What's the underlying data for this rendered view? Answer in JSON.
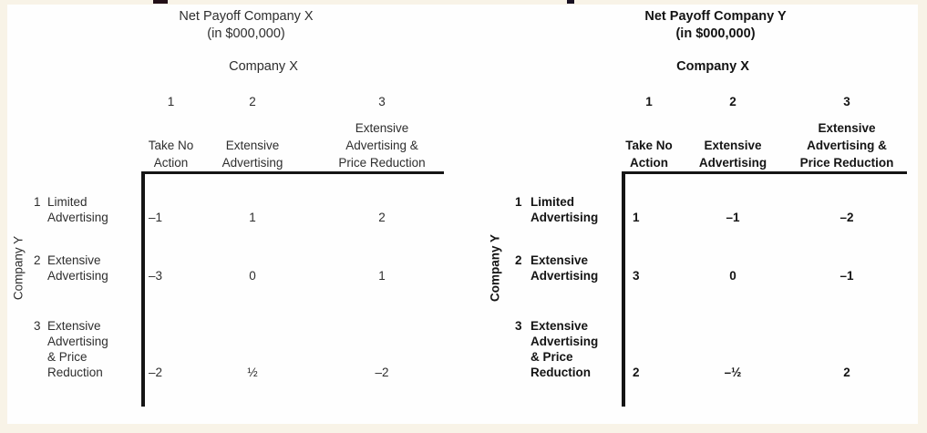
{
  "palette": {
    "page_border_background": "#f8f3e7",
    "content_background": "#fefefe",
    "left_table_text": "#2e2e2e",
    "right_table_text": "#141414",
    "table_rule": "#151515"
  },
  "chart_data": [
    {
      "type": "table",
      "title": "Net Payoff Company X",
      "subtitle": "(in $000,000)",
      "column_group_label": "Company X",
      "row_group_label": "Company Y",
      "columns": [
        {
          "number": "1",
          "line1": "Take No",
          "line2": "Action"
        },
        {
          "number": "2",
          "line1": "Extensive",
          "line2": "Advertising"
        },
        {
          "number": "3",
          "line1": "Extensive",
          "line2": "Advertising &",
          "line3": "Price Reduction"
        }
      ],
      "rows": [
        {
          "number": "1",
          "line1": "Limited",
          "line2": "Advertising",
          "v1": "–1",
          "v2": "1",
          "v3": "2"
        },
        {
          "number": "2",
          "line1": "Extensive",
          "line2": "Advertising",
          "v1": "–3",
          "v2": "0",
          "v3": "1"
        },
        {
          "number": "3",
          "line1": "Extensive",
          "line2": "Advertising",
          "line3": "& Price",
          "line4": "Reduction",
          "v1": "–2",
          "v2": "½",
          "v3": "–2"
        }
      ],
      "matrix": [
        [
          -1,
          1,
          2
        ],
        [
          -3,
          0,
          1
        ],
        [
          -2,
          0.5,
          -2
        ]
      ]
    },
    {
      "type": "table",
      "title": "Net Payoff Company Y",
      "subtitle": "(in $000,000)",
      "column_group_label": "Company X",
      "row_group_label": "Company Y",
      "columns": [
        {
          "number": "1",
          "line1": "Take No",
          "line2": "Action"
        },
        {
          "number": "2",
          "line1": "Extensive",
          "line2": "Advertising"
        },
        {
          "number": "3",
          "line1": "Extensive",
          "line2": "Advertising &",
          "line3": "Price Reduction"
        }
      ],
      "rows": [
        {
          "number": "1",
          "line1": "Limited",
          "line2": "Advertising",
          "v1": "1",
          "v2": "–1",
          "v3": "–2"
        },
        {
          "number": "2",
          "line1": "Extensive",
          "line2": "Advertising",
          "v1": "3",
          "v2": "0",
          "v3": "–1"
        },
        {
          "number": "3",
          "line1": "Extensive",
          "line2": "Advertising",
          "line3": "& Price",
          "line4": "Reduction",
          "v1": "2",
          "v2": "–½",
          "v3": "2"
        }
      ],
      "matrix": [
        [
          1,
          -1,
          -2
        ],
        [
          3,
          0,
          -1
        ],
        [
          2,
          -0.5,
          2
        ]
      ]
    }
  ]
}
